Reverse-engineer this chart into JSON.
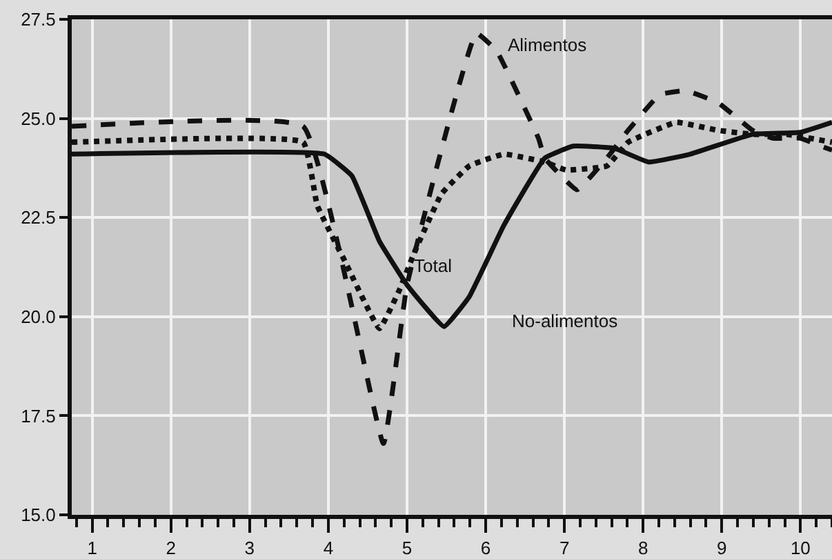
{
  "chart_data": {
    "type": "line",
    "legend": false,
    "grid": true,
    "xlim": [
      0.74,
      10.4
    ],
    "xticks": [
      1,
      2,
      3,
      4,
      5,
      6,
      7,
      8,
      9,
      10
    ],
    "ylim": [
      15.0,
      27.5
    ],
    "yticks": [
      {
        "value": 15,
        "label": "15.0"
      },
      {
        "value": 17.5,
        "label": "17.5"
      },
      {
        "value": 20,
        "label": "20.0"
      },
      {
        "value": 22.5,
        "label": "22.5"
      },
      {
        "value": 25,
        "label": "25.0"
      },
      {
        "value": 27.5,
        "label": "27.5"
      }
    ],
    "series": [
      {
        "name": "Alimentos",
        "color": "#111111",
        "line_style": "dashed",
        "x": [
          0.74,
          3.68,
          4.7,
          5.0,
          5.88,
          6.14,
          6.67,
          6.75,
          7.16,
          7.54,
          7.81,
          8.21,
          8.54,
          8.95,
          9.39,
          9.65,
          10.0,
          10.26,
          10.4
        ],
        "values": [
          24.8,
          24.8,
          16.8,
          20.8,
          27.15,
          26.7,
          24.5,
          24.0,
          23.2,
          24.0,
          24.7,
          25.6,
          25.7,
          25.4,
          24.7,
          24.5,
          24.5,
          24.3,
          24.2
        ]
      },
      {
        "name": "Total",
        "color": "#111111",
        "line_style": "dotted",
        "x": [
          0.74,
          3.68,
          3.86,
          4.21,
          4.65,
          4.91,
          5.09,
          5.44,
          5.79,
          6.23,
          6.75,
          7.02,
          7.54,
          7.81,
          8.42,
          8.95,
          9.39,
          9.82,
          10.4
        ],
        "values": [
          24.4,
          24.4,
          22.8,
          21.4,
          19.7,
          20.7,
          21.6,
          23.1,
          23.8,
          24.1,
          23.9,
          23.7,
          23.8,
          24.4,
          24.9,
          24.7,
          24.6,
          24.6,
          24.4
        ]
      },
      {
        "name": "No-alimentos",
        "color": "#111111",
        "line_style": "solid",
        "x": [
          0.74,
          3.95,
          4.3,
          4.65,
          5.0,
          5.47,
          5.79,
          6.23,
          6.75,
          7.11,
          7.63,
          8.07,
          8.6,
          9.39,
          10.0,
          10.4
        ],
        "values": [
          24.1,
          24.1,
          23.55,
          21.9,
          20.8,
          19.75,
          20.5,
          22.3,
          24.0,
          24.3,
          24.25,
          23.9,
          24.1,
          24.6,
          24.65,
          24.9
        ]
      }
    ]
  }
}
